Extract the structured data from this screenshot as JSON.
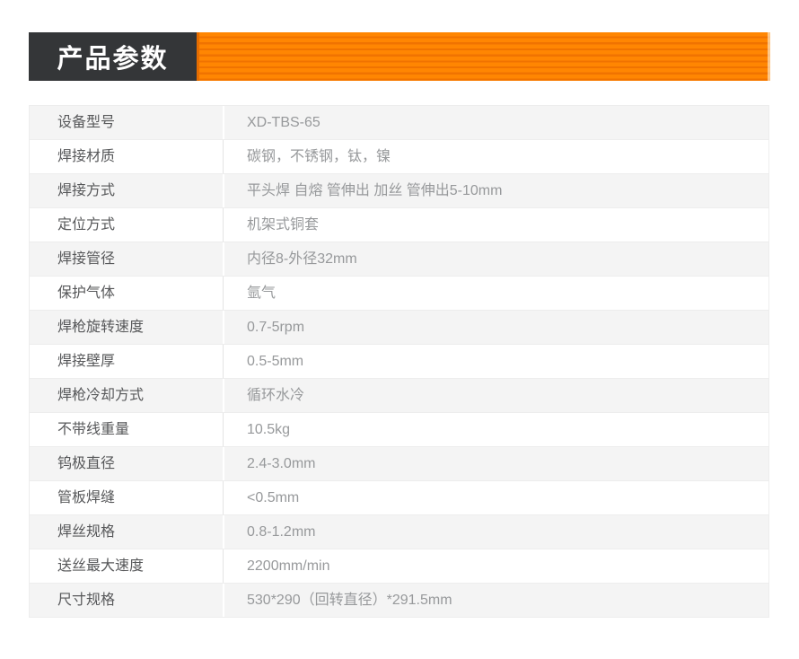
{
  "page": {
    "background": "#ffffff"
  },
  "header": {
    "title": "产品参数",
    "title_bg": "#343638",
    "title_color": "#ffffff",
    "stripe_main": "#ff8602",
    "stripe_dark": "#f07301",
    "stripe_edge": "#e66d00"
  },
  "table": {
    "row_alt_bg": "#f4f4f4",
    "border_color": "#ededed",
    "divider_color": "#e4e4e4",
    "label_color": "#57585a",
    "value_color": "#97999b",
    "rows": [
      {
        "label": "设备型号",
        "value": "XD-TBS-65"
      },
      {
        "label": "焊接材质",
        "value": "碳钢，不锈钢，钛，镍"
      },
      {
        "label": "焊接方式",
        "value": "平头焊 自熔 管伸出 加丝 管伸出5-10mm"
      },
      {
        "label": "定位方式",
        "value": "机架式铜套"
      },
      {
        "label": "焊接管径",
        "value": "内径8-外径32mm"
      },
      {
        "label": "保护气体",
        "value": "氩气"
      },
      {
        "label": "焊枪旋转速度",
        "value": "0.7-5rpm"
      },
      {
        "label": "焊接壁厚",
        "value": "0.5-5mm"
      },
      {
        "label": "焊枪冷却方式",
        "value": "循环水冷"
      },
      {
        "label": "不带线重量",
        "value": "10.5kg"
      },
      {
        "label": "钨极直径",
        "value": "2.4-3.0mm"
      },
      {
        "label": "管板焊缝",
        "value": "<0.5mm"
      },
      {
        "label": "焊丝规格",
        "value": "0.8-1.2mm"
      },
      {
        "label": "送丝最大速度",
        "value": "2200mm/min"
      },
      {
        "label": "尺寸规格",
        "value": "530*290（回转直径）*291.5mm"
      }
    ]
  }
}
